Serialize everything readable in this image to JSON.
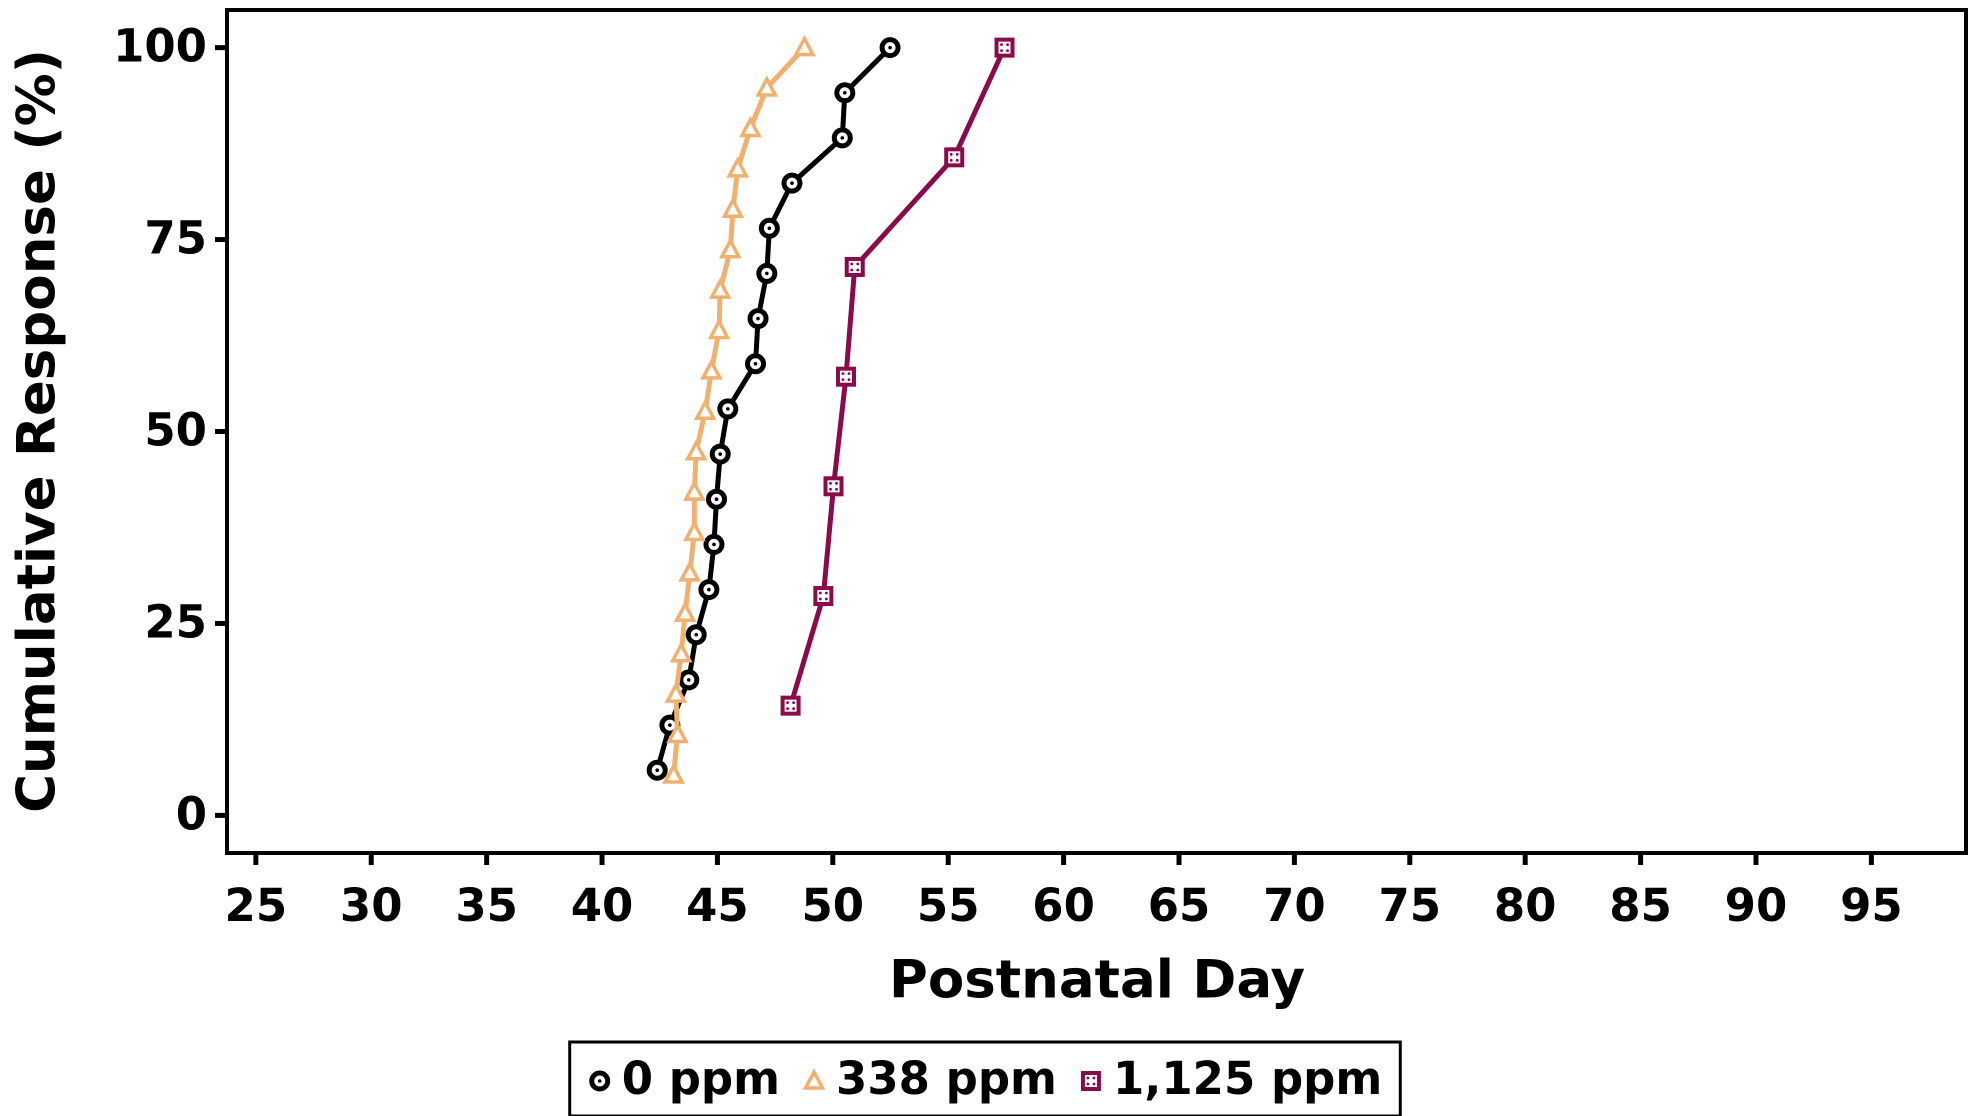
{
  "chart_data": {
    "type": "line",
    "x_label": "Postnatal Day",
    "y_label": "Cumulative Response (%)",
    "xlim": [
      23.75,
      99.1
    ],
    "ylim": [
      -4.9,
      104.9
    ],
    "xticks": [
      25,
      30,
      35,
      40,
      45,
      50,
      55,
      60,
      65,
      70,
      75,
      80,
      85,
      90,
      95
    ],
    "yticks": [
      0,
      25,
      50,
      75,
      100
    ],
    "series": [
      {
        "name": "0 ppm",
        "color": "#000000",
        "marker": "circle",
        "x": [
          42.39,
          42.94,
          43.76,
          44.08,
          44.63,
          44.85,
          44.96,
          45.12,
          45.45,
          46.65,
          46.76,
          47.14,
          47.25,
          48.23,
          50.41,
          50.52,
          52.48
        ],
        "values": [
          5.88,
          11.76,
          17.65,
          23.53,
          29.41,
          35.29,
          41.18,
          47.06,
          52.94,
          58.82,
          64.71,
          70.59,
          76.47,
          82.35,
          88.24,
          94.12,
          100
        ]
      },
      {
        "name": "338 ppm",
        "color": "#f0b070",
        "marker": "triangle",
        "x": [
          43.1,
          43.27,
          43.2,
          43.43,
          43.6,
          43.8,
          44.0,
          44.0,
          44.08,
          44.47,
          44.74,
          45.07,
          45.12,
          45.56,
          45.67,
          45.88,
          46.43,
          47.14,
          48.77
        ],
        "values": [
          5.26,
          10.53,
          15.79,
          21.05,
          26.32,
          31.58,
          36.84,
          42.11,
          47.37,
          52.63,
          57.89,
          63.16,
          68.42,
          73.68,
          78.95,
          84.21,
          89.47,
          94.74,
          100
        ]
      },
      {
        "name": "1,125 ppm",
        "color": "#8b0a4a",
        "marker": "square",
        "x": [
          48.17,
          49.59,
          50.03,
          50.57,
          50.95,
          55.26,
          57.44
        ],
        "values": [
          14.29,
          28.57,
          42.86,
          57.14,
          71.43,
          85.71,
          100
        ]
      }
    ]
  }
}
